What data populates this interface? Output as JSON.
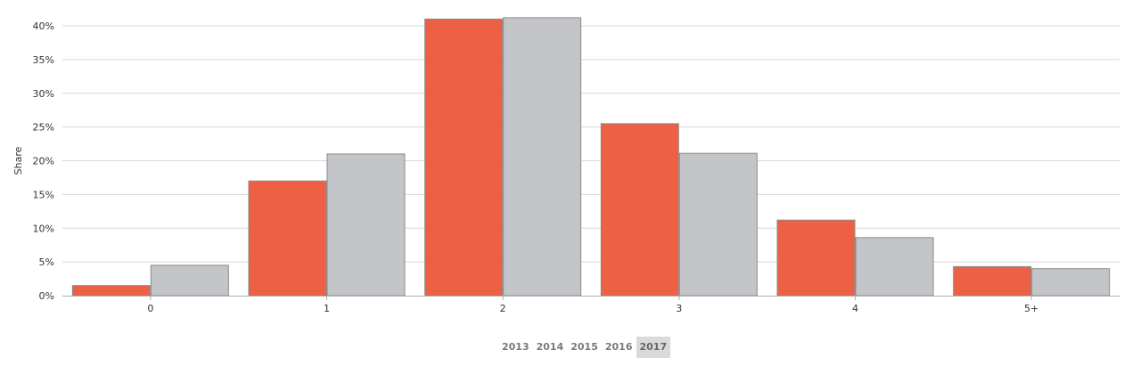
{
  "chart_data": {
    "type": "bar",
    "title": "",
    "xlabel": "",
    "ylabel": "Share",
    "ylim": [
      0,
      40
    ],
    "yticks": [
      "0%",
      "5%",
      "10%",
      "15%",
      "20%",
      "25%",
      "30%",
      "35%",
      "40%"
    ],
    "categories": [
      "0",
      "1",
      "2",
      "3",
      "4",
      "5+"
    ],
    "series": [
      {
        "color": "#ee6044",
        "values": [
          1.5,
          17.0,
          41.0,
          25.5,
          11.2,
          4.3
        ]
      },
      {
        "color": "#c4c5c9",
        "values": [
          4.5,
          21.0,
          41.2,
          21.1,
          8.6,
          4.0
        ]
      }
    ],
    "grid": true,
    "legend": "none"
  },
  "year_selector": {
    "years": [
      "2013",
      "2014",
      "2015",
      "2016",
      "2017"
    ],
    "selected": "2017"
  }
}
